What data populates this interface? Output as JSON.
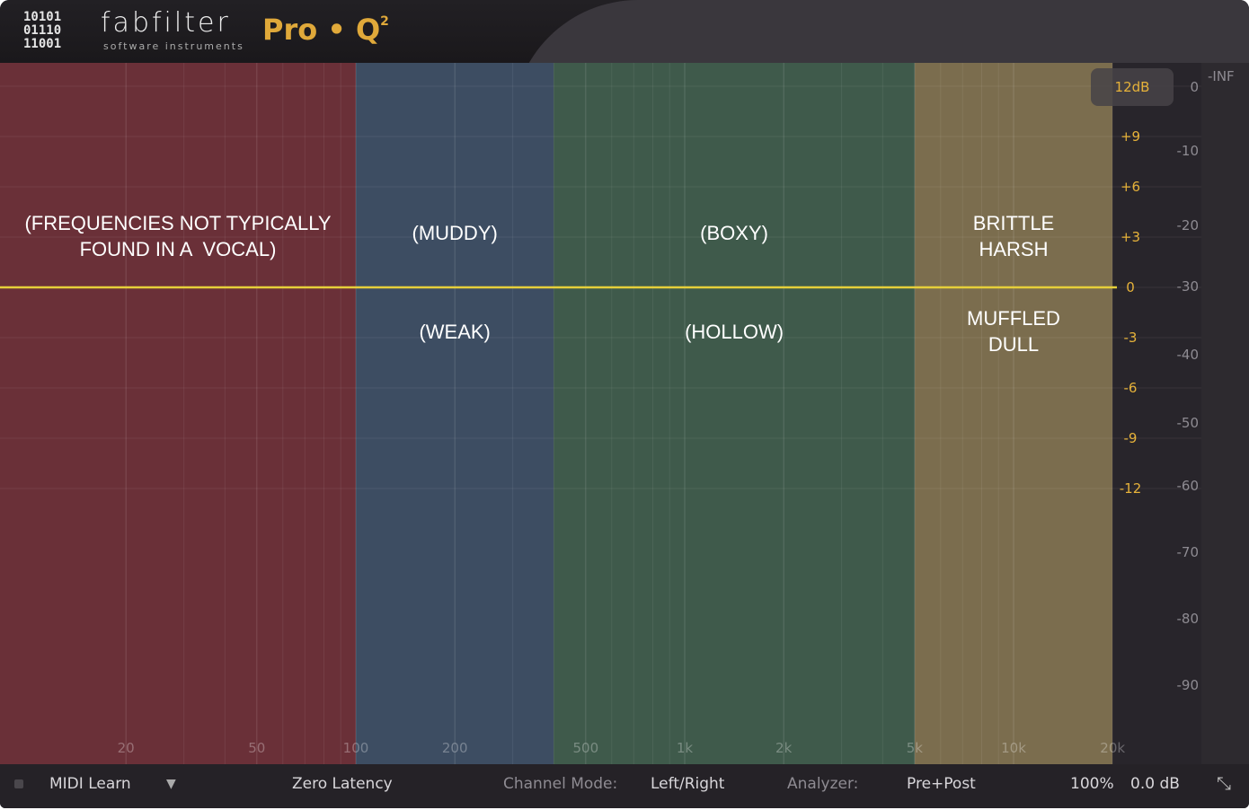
{
  "header": {
    "logo_bits": [
      "10101",
      "01110",
      "11001"
    ],
    "brand": "fabfilter",
    "brand_sub": "software instruments",
    "product": "Pro • Q",
    "product_sup": "2"
  },
  "bands": [
    {
      "from_hz": 10,
      "to_hz": 100,
      "color": "#6a3038",
      "top": "(FREQUENCIES NOT TYPICALLY\nFOUND IN A  VOCAL)",
      "bottom": ""
    },
    {
      "from_hz": 100,
      "to_hz": 400,
      "color": "#3d4d62",
      "top": "(MUDDY)",
      "bottom": "(WEAK)"
    },
    {
      "from_hz": 400,
      "to_hz": 5000,
      "color": "#3f5a4b",
      "top": "(BOXY)",
      "bottom": "(HOLLOW)"
    },
    {
      "from_hz": 5000,
      "to_hz": 20000,
      "color": "#7b6d4e",
      "top": "BRITTLE\nHARSH",
      "bottom": "MUFFLED\nDULL"
    }
  ],
  "curve": {
    "gain_db": 0,
    "color": "#e6cf3a"
  },
  "freq_ticks": [
    "20",
    "50",
    "100",
    "200",
    "500",
    "1k",
    "2k",
    "5k",
    "10k",
    "20k"
  ],
  "freq_tick_values": [
    20,
    50,
    100,
    200,
    500,
    1000,
    2000,
    5000,
    10000,
    20000
  ],
  "gain_ticks": [
    "+9",
    "+6",
    "+3",
    "0",
    "-3",
    "-6",
    "-9",
    "-12"
  ],
  "gain_tick_values": [
    9,
    6,
    3,
    0,
    -3,
    -6,
    -9,
    -12
  ],
  "range_button": "12dB",
  "meter_ticks": [
    "0",
    "-10",
    "-20",
    "-30",
    "-40",
    "-50",
    "-60",
    "-70",
    "-80",
    "-90"
  ],
  "meter_inf": "-INF",
  "footer": {
    "midi_learn": "MIDI Learn",
    "latency": "Zero Latency",
    "channel_mode_label": "Channel Mode:",
    "channel_mode": "Left/Right",
    "analyzer_label": "Analyzer:",
    "analyzer": "Pre+Post",
    "zoom": "100%",
    "output_gain": "0.0 dB"
  }
}
